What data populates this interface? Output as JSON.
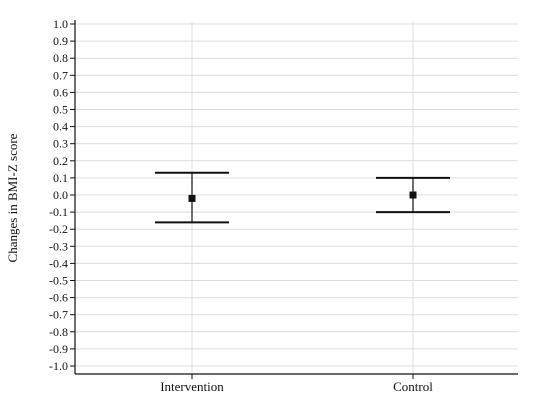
{
  "chart_data": {
    "type": "scatter",
    "subtype": "error-bar",
    "title": "",
    "xlabel": "",
    "ylabel": "Changes in BMI-Z score",
    "ylim": [
      -1.0,
      1.0
    ],
    "yticks": [
      "1.0",
      "0.9",
      "0.8",
      "0.7",
      "0.6",
      "0.5",
      "0.4",
      "0.3",
      "0.2",
      "0.1",
      "0.0",
      "-0.1",
      "-0.2",
      "-0.3",
      "-0.4",
      "-0.5",
      "-0.6",
      "-0.7",
      "-0.8",
      "-0.9",
      "-1.0"
    ],
    "grid": true,
    "categories": [
      "Intervention",
      "Control"
    ],
    "points": [
      {
        "category": "Intervention",
        "mean": -0.02,
        "lower": -0.16,
        "upper": 0.13
      },
      {
        "category": "Control",
        "mean": 0.0,
        "lower": -0.1,
        "upper": 0.1
      }
    ]
  }
}
